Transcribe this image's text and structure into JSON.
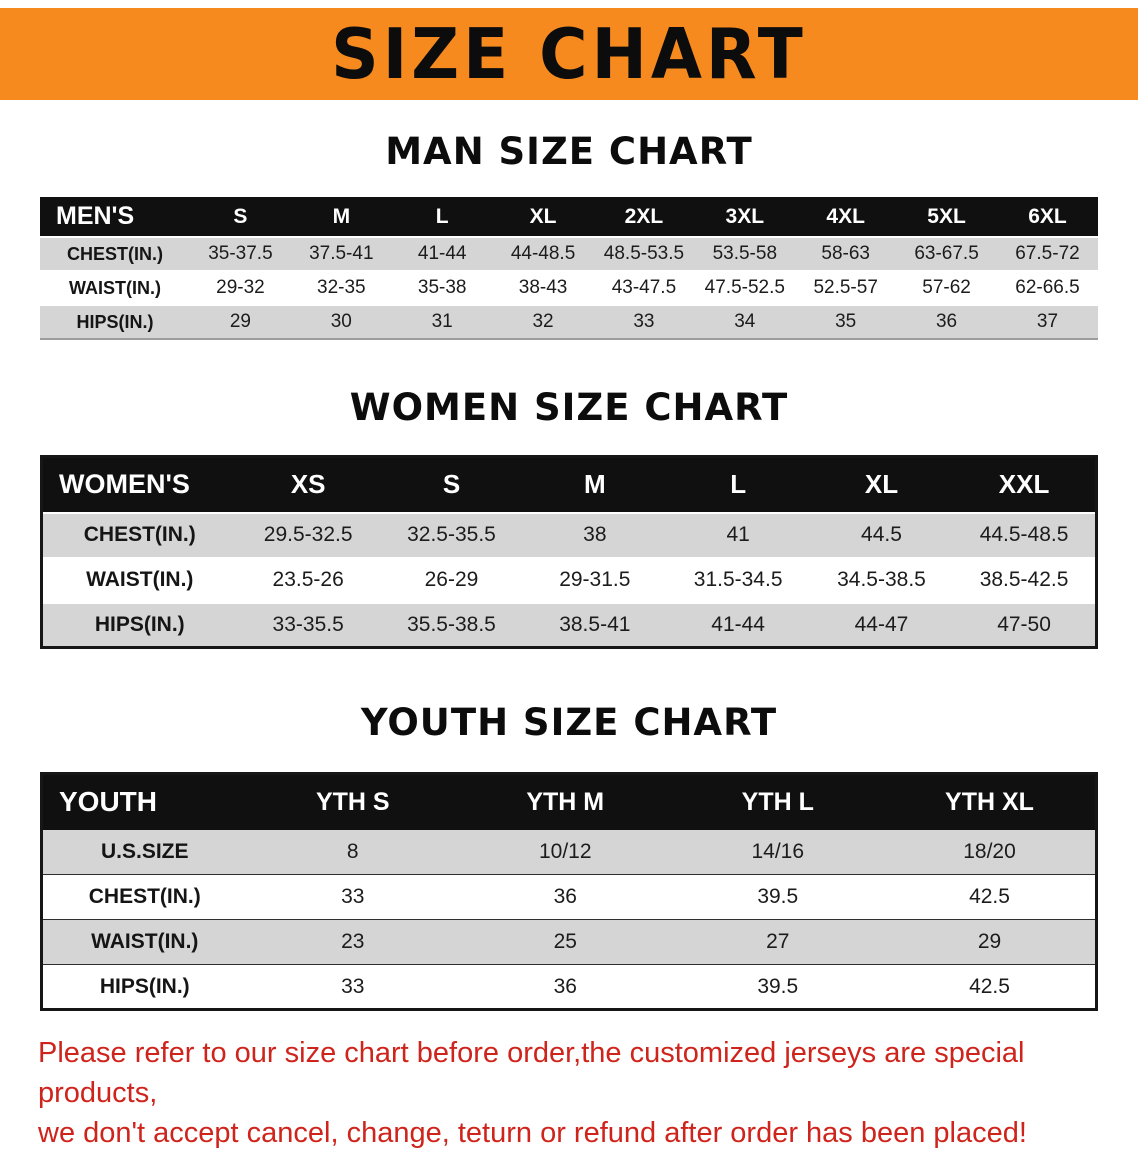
{
  "banner": {
    "title": "SIZE CHART"
  },
  "chart_data": [
    {
      "type": "table",
      "title": "MAN SIZE CHART",
      "header": [
        "MEN'S",
        "S",
        "M",
        "L",
        "XL",
        "2XL",
        "3XL",
        "4XL",
        "5XL",
        "6XL"
      ],
      "rows": [
        [
          "CHEST(IN.)",
          "35-37.5",
          "37.5-41",
          "41-44",
          "44-48.5",
          "48.5-53.5",
          "53.5-58",
          "58-63",
          "63-67.5",
          "67.5-72"
        ],
        [
          "WAIST(IN.)",
          "29-32",
          "32-35",
          "35-38",
          "38-43",
          "43-47.5",
          "47.5-52.5",
          "52.5-57",
          "57-62",
          "62-66.5"
        ],
        [
          "HIPS(IN.)",
          "29",
          "30",
          "31",
          "32",
          "33",
          "34",
          "35",
          "36",
          "37"
        ]
      ]
    },
    {
      "type": "table",
      "title": "WOMEN SIZE CHART",
      "header": [
        "WOMEN'S",
        "XS",
        "S",
        "M",
        "L",
        "XL",
        "XXL"
      ],
      "rows": [
        [
          "CHEST(IN.)",
          "29.5-32.5",
          "32.5-35.5",
          "38",
          "41",
          "44.5",
          "44.5-48.5"
        ],
        [
          "WAIST(IN.)",
          "23.5-26",
          "26-29",
          "29-31.5",
          "31.5-34.5",
          "34.5-38.5",
          "38.5-42.5"
        ],
        [
          "HIPS(IN.)",
          "33-35.5",
          "35.5-38.5",
          "38.5-41",
          "41-44",
          "44-47",
          "47-50"
        ]
      ]
    },
    {
      "type": "table",
      "title": "YOUTH SIZE CHART",
      "header": [
        "YOUTH",
        "YTH S",
        "YTH M",
        "YTH L",
        "YTH XL"
      ],
      "rows": [
        [
          "U.S.SIZE",
          "8",
          "10/12",
          "14/16",
          "18/20"
        ],
        [
          "CHEST(IN.)",
          "33",
          "36",
          "39.5",
          "42.5"
        ],
        [
          "WAIST(IN.)",
          "23",
          "25",
          "27",
          "29"
        ],
        [
          "HIPS(IN.)",
          "33",
          "36",
          "39.5",
          "42.5"
        ]
      ]
    }
  ],
  "footer": {
    "line1": "Please refer to our size chart before order,the customized jerseys are special products,",
    "line2": "we don't accept cancel, change, teturn or refund after order has been placed!"
  },
  "colors": {
    "banner_bg": "#f68a1e",
    "table_header_bg": "#101010",
    "row_alt_bg": "#d5d5d5",
    "footer_text": "#cf241c"
  }
}
